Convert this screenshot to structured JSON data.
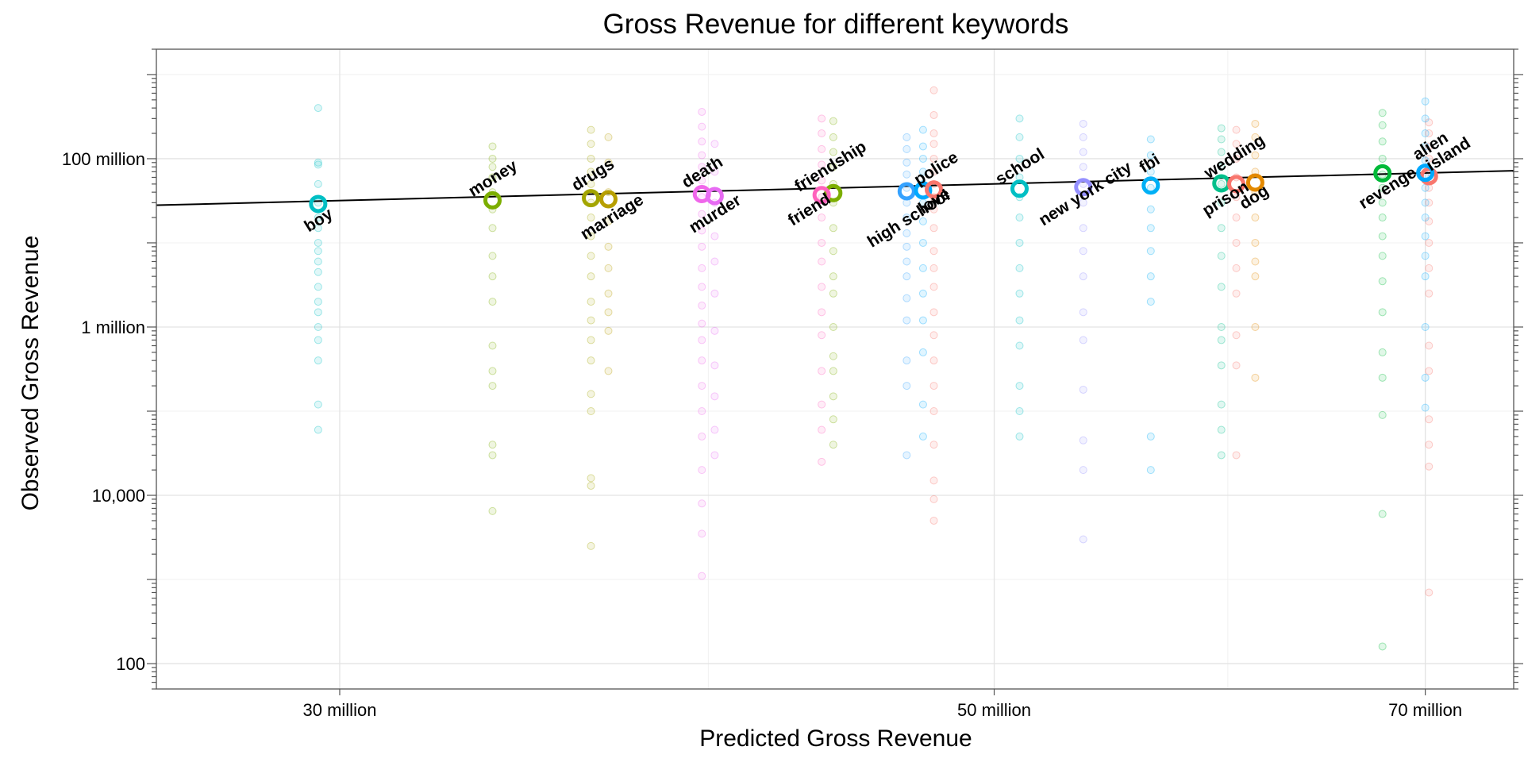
{
  "chart_data": {
    "type": "scatter",
    "title": "Gross Revenue for different keywords",
    "xlabel": "Predicted Gross Revenue",
    "ylabel": "Observed Gross Revenue",
    "x_scale": "log",
    "y_scale": "log",
    "xlim": [
      26000000,
      75000000
    ],
    "ylim": [
      50,
      2000000000
    ],
    "x_ticks": [
      {
        "value": 30000000,
        "label": "30 million"
      },
      {
        "value": 50000000,
        "label": "50 million"
      },
      {
        "value": 70000000,
        "label": "70 million"
      }
    ],
    "y_ticks": [
      {
        "value": 100,
        "label": "100"
      },
      {
        "value": 10000,
        "label": "10,000"
      },
      {
        "value": 1000000,
        "label": "1 million"
      },
      {
        "value": 100000000,
        "label": "100 million"
      }
    ],
    "grid": true,
    "trend_line": {
      "x": [
        26000000,
        75000000
      ],
      "y": [
        28000000,
        72000000
      ]
    },
    "series": [
      {
        "name": "boy",
        "color": "#00BFC4",
        "x": 29500000,
        "y": 29000000,
        "individual": [
          400000000,
          90000000,
          85000000,
          50000000,
          30000000,
          20000000,
          15000000,
          10000000,
          8000000,
          6000000,
          4500000,
          3000000,
          2000000,
          1500000,
          1000000,
          700000,
          400000,
          120000,
          60000
        ]
      },
      {
        "name": "money",
        "color": "#7CAE00",
        "x": 33800000,
        "y": 32000000,
        "individual": [
          140000000,
          100000000,
          80000000,
          60000000,
          40000000,
          25000000,
          15000000,
          7000000,
          4000000,
          2000000,
          600000,
          300000,
          200000,
          40000,
          30000,
          6500
        ]
      },
      {
        "name": "drugs",
        "color": "#A3A500",
        "x": 36500000,
        "y": 34000000,
        "individual": [
          220000000,
          150000000,
          100000000,
          70000000,
          50000000,
          30000000,
          20000000,
          12000000,
          7000000,
          4000000,
          2000000,
          1200000,
          700000,
          400000,
          160000,
          100000,
          16000,
          13000,
          2500
        ]
      },
      {
        "name": "marriage",
        "color": "#B79F00",
        "x": 37000000,
        "y": 33000000,
        "individual": [
          180000000,
          90000000,
          40000000,
          18000000,
          9000000,
          5000000,
          2500000,
          1500000,
          900000,
          300000
        ]
      },
      {
        "name": "death",
        "color": "#F066EA",
        "x": 39800000,
        "y": 38000000,
        "individual": [
          360000000,
          240000000,
          160000000,
          110000000,
          80000000,
          55000000,
          35000000,
          22000000,
          14000000,
          9000000,
          5000000,
          3000000,
          1800000,
          1100000,
          700000,
          400000,
          200000,
          100000,
          50000,
          20000,
          8000,
          3500,
          1100
        ]
      },
      {
        "name": "murder",
        "color": "#E76BF3",
        "x": 40200000,
        "y": 36000000,
        "individual": [
          150000000,
          70000000,
          30000000,
          12000000,
          6000000,
          2500000,
          900000,
          350000,
          150000,
          60000,
          30000
        ]
      },
      {
        "name": "friendship",
        "color": "#7CAE00",
        "x": 44100000,
        "y": 39000000,
        "individual": [
          280000000,
          180000000,
          120000000,
          80000000,
          50000000,
          30000000,
          15000000,
          8000000,
          4000000,
          2500000,
          1000000,
          450000,
          300000,
          150000,
          80000,
          40000
        ]
      },
      {
        "name": "friend",
        "color": "#FF62BC",
        "x": 43700000,
        "y": 37000000,
        "individual": [
          300000000,
          200000000,
          130000000,
          85000000,
          55000000,
          35000000,
          20000000,
          10000000,
          6000000,
          3000000,
          1500000,
          800000,
          300000,
          120000,
          60000,
          25000
        ]
      },
      {
        "name": "high school",
        "color": "#35A2FF",
        "x": 46700000,
        "y": 41000000,
        "individual": [
          180000000,
          130000000,
          90000000,
          65000000,
          45000000,
          30000000,
          20000000,
          13000000,
          9000000,
          6000000,
          4000000,
          2200000,
          1200000,
          400000,
          200000,
          30000
        ]
      },
      {
        "name": "police",
        "color": "#00A9FF",
        "x": 47300000,
        "y": 42000000,
        "individual": [
          220000000,
          140000000,
          100000000,
          70000000,
          50000000,
          30000000,
          18000000,
          10000000,
          5000000,
          2500000,
          1200000,
          500000,
          120000,
          50000
        ]
      },
      {
        "name": "love",
        "color": "#F8766D",
        "x": 47700000,
        "y": 43000000,
        "individual": [
          650000000,
          330000000,
          200000000,
          150000000,
          100000000,
          70000000,
          50000000,
          35000000,
          25000000,
          15000000,
          8000000,
          5000000,
          3000000,
          1500000,
          800000,
          400000,
          200000,
          100000,
          40000,
          15000,
          9000,
          5000
        ]
      },
      {
        "name": "school",
        "color": "#00BFC4",
        "x": 51000000,
        "y": 44000000,
        "individual": [
          300000000,
          180000000,
          100000000,
          60000000,
          35000000,
          20000000,
          10000000,
          5000000,
          2500000,
          1200000,
          600000,
          200000,
          100000,
          50000
        ]
      },
      {
        "name": "new york city",
        "color": "#9590FF",
        "x": 53600000,
        "y": 46000000,
        "individual": [
          260000000,
          180000000,
          120000000,
          80000000,
          50000000,
          30000000,
          15000000,
          8000000,
          4000000,
          1500000,
          700000,
          180000,
          45000,
          20000,
          3000
        ]
      },
      {
        "name": "fbi",
        "color": "#00B0F6",
        "x": 56500000,
        "y": 48000000,
        "individual": [
          170000000,
          110000000,
          70000000,
          45000000,
          25000000,
          15000000,
          8000000,
          4000000,
          2000000,
          50000,
          20000
        ]
      },
      {
        "name": "wedding",
        "color": "#00C08B",
        "x": 59700000,
        "y": 51000000,
        "individual": [
          230000000,
          170000000,
          120000000,
          80000000,
          50000000,
          30000000,
          15000000,
          7000000,
          3000000,
          1000000,
          700000,
          350000,
          120000,
          60000,
          30000
        ]
      },
      {
        "name": "prison",
        "color": "#F8766D",
        "x": 60400000,
        "y": 50000000,
        "individual": [
          220000000,
          150000000,
          100000000,
          60000000,
          35000000,
          20000000,
          10000000,
          5000000,
          2500000,
          800000,
          350000,
          30000
        ]
      },
      {
        "name": "dog",
        "color": "#E38900",
        "x": 61300000,
        "y": 52000000,
        "individual": [
          260000000,
          180000000,
          110000000,
          70000000,
          40000000,
          20000000,
          10000000,
          6000000,
          4000000,
          1000000,
          250000
        ]
      },
      {
        "name": "island",
        "color": "#F8766D",
        "x": 70200000,
        "y": 62000000,
        "individual": [
          270000000,
          200000000,
          140000000,
          100000000,
          70000000,
          45000000,
          30000000,
          18000000,
          10000000,
          5000000,
          2500000,
          600000,
          300000,
          80000,
          40000,
          22000,
          700
        ]
      },
      {
        "name": "revenge",
        "color": "#00BA38",
        "x": 67700000,
        "y": 67000000,
        "individual": [
          350000000,
          250000000,
          160000000,
          100000000,
          65000000,
          45000000,
          30000000,
          20000000,
          12000000,
          7000000,
          3500000,
          1500000,
          500000,
          250000,
          90000,
          6000,
          160
        ]
      },
      {
        "name": "alien",
        "color": "#00A9FF",
        "x": 70000000,
        "y": 68000000,
        "individual": [
          480000000,
          300000000,
          200000000,
          140000000,
          95000000,
          65000000,
          45000000,
          30000000,
          20000000,
          12000000,
          7000000,
          4000000,
          1000000,
          250000,
          110000
        ]
      }
    ],
    "labels": [
      {
        "series": "boy",
        "text": "boy",
        "dx": 4,
        "dy": 26
      },
      {
        "series": "money",
        "text": "money",
        "dx": 4,
        "dy": -22
      },
      {
        "series": "drugs",
        "text": "drugs",
        "dx": 6,
        "dy": -24
      },
      {
        "series": "marriage",
        "text": "marriage",
        "dx": 8,
        "dy": 28
      },
      {
        "series": "death",
        "text": "death",
        "dx": 4,
        "dy": -22
      },
      {
        "series": "murder",
        "text": "murder",
        "dx": 4,
        "dy": 28
      },
      {
        "series": "friendship",
        "text": "friendship",
        "dx": 0,
        "dy": -28
      },
      {
        "series": "friend",
        "text": "friend",
        "dx": -12,
        "dy": 24
      },
      {
        "series": "high school",
        "text": "high school",
        "dx": 6,
        "dy": 40
      },
      {
        "series": "police",
        "text": "police",
        "dx": 20,
        "dy": -22
      },
      {
        "series": "love",
        "text": "love",
        "dx": 4,
        "dy": 20
      },
      {
        "series": "school",
        "text": "school",
        "dx": 4,
        "dy": -22
      },
      {
        "series": "new york city",
        "text": "new york city",
        "dx": 6,
        "dy": 14
      },
      {
        "series": "fbi",
        "text": "fbi",
        "dx": 2,
        "dy": -22
      },
      {
        "series": "wedding",
        "text": "wedding",
        "dx": 20,
        "dy": -28
      },
      {
        "series": "prison",
        "text": "prison",
        "dx": -10,
        "dy": 24
      },
      {
        "series": "dog",
        "text": "dog",
        "dx": 2,
        "dy": 24
      },
      {
        "series": "island",
        "text": "island",
        "dx": 28,
        "dy": -22
      },
      {
        "series": "revenge",
        "text": "revenge",
        "dx": 10,
        "dy": 24
      },
      {
        "series": "alien",
        "text": "alien",
        "dx": 10,
        "dy": -28
      }
    ]
  }
}
